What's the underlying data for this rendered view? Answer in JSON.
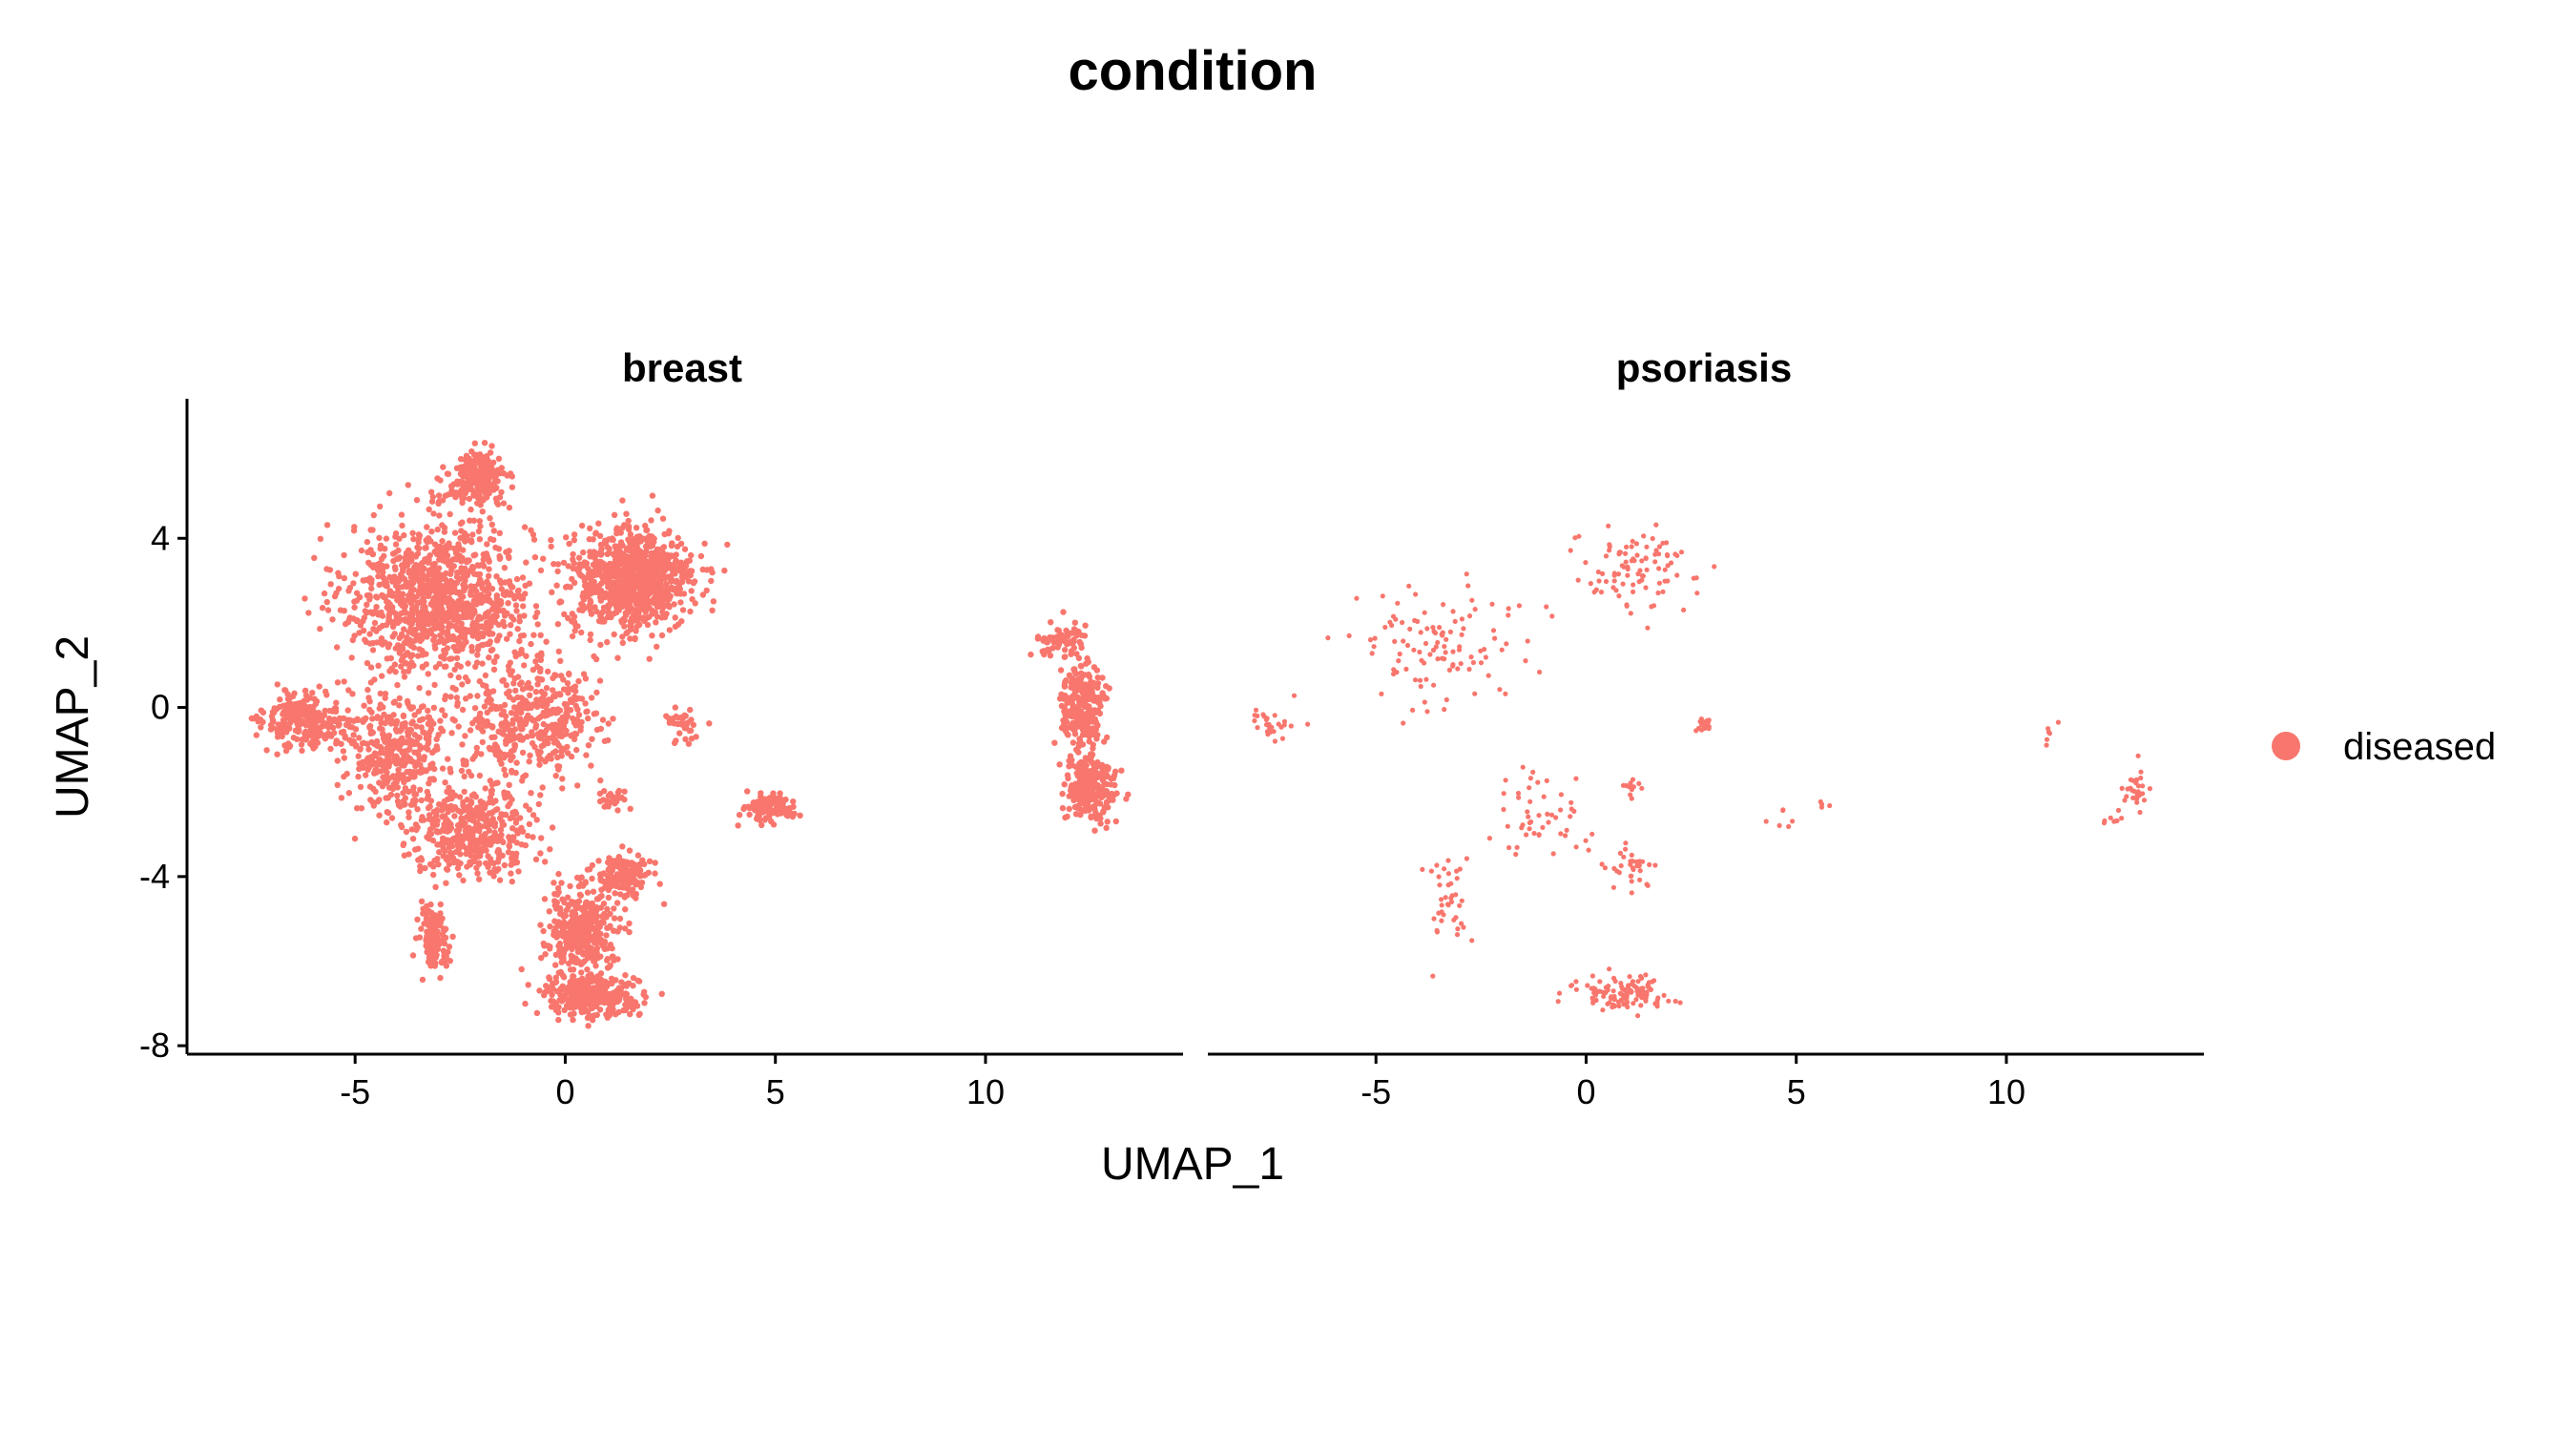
{
  "chart_data": {
    "type": "scatter",
    "title": "condition",
    "xlabel": "UMAP_1",
    "ylabel": "UMAP_2",
    "xlim": [
      -9,
      14.7
    ],
    "ylim": [
      -8.2,
      7.3
    ],
    "xticks": [
      -5,
      0,
      5,
      10
    ],
    "xtick_labels": [
      "-5",
      "0",
      "5",
      "10"
    ],
    "yticks": [
      4,
      0,
      -4,
      -8
    ],
    "ytick_labels": [
      "4",
      "0",
      "-4",
      "-8"
    ],
    "grid": false,
    "legend_position": "right",
    "legend": [
      {
        "label": "diseased",
        "color": "#F8766D"
      }
    ],
    "point_color": "#F8766D",
    "facets": [
      {
        "name": "breast",
        "density": "dense",
        "clusters": [
          {
            "center": [
              -3.0,
              2.6
            ],
            "spread": [
              2.0,
              1.6
            ],
            "n": 1100
          },
          {
            "center": [
              1.6,
              3.0
            ],
            "spread": [
              1.3,
              1.1
            ],
            "n": 900
          },
          {
            "center": [
              -2.1,
              5.4
            ],
            "spread": [
              0.65,
              0.55
            ],
            "n": 220
          },
          {
            "center": [
              -6.2,
              -0.3
            ],
            "spread": [
              0.9,
              0.6
            ],
            "n": 260
          },
          {
            "center": [
              -4.0,
              -1.0
            ],
            "spread": [
              1.1,
              1.3
            ],
            "n": 400
          },
          {
            "center": [
              -0.8,
              -0.3
            ],
            "spread": [
              1.4,
              1.2
            ],
            "n": 420
          },
          {
            "center": [
              -2.2,
              -2.9
            ],
            "spread": [
              1.3,
              0.9
            ],
            "n": 460
          },
          {
            "center": [
              -3.1,
              -5.4
            ],
            "spread": [
              0.35,
              0.7
            ],
            "n": 120
          },
          {
            "center": [
              0.4,
              -5.3
            ],
            "spread": [
              0.8,
              0.9
            ],
            "n": 380
          },
          {
            "center": [
              0.6,
              -6.8
            ],
            "spread": [
              1.0,
              0.45
            ],
            "n": 320
          },
          {
            "center": [
              1.4,
              -4.0
            ],
            "spread": [
              0.55,
              0.45
            ],
            "n": 150
          },
          {
            "center": [
              2.8,
              -0.4
            ],
            "spread": [
              0.4,
              0.35
            ],
            "n": 35
          },
          {
            "center": [
              1.2,
              -2.2
            ],
            "spread": [
              0.4,
              0.3
            ],
            "n": 25
          },
          {
            "center": [
              4.9,
              -2.4
            ],
            "spread": [
              0.55,
              0.3
            ],
            "n": 110
          },
          {
            "center": [
              11.8,
              1.6
            ],
            "spread": [
              0.55,
              0.4
            ],
            "n": 70
          },
          {
            "center": [
              12.3,
              0.0
            ],
            "spread": [
              0.45,
              0.9
            ],
            "n": 240
          },
          {
            "center": [
              12.5,
              -1.9
            ],
            "spread": [
              0.55,
              0.7
            ],
            "n": 240
          }
        ]
      },
      {
        "name": "psoriasis",
        "density": "sparse",
        "clusters": [
          {
            "center": [
              -3.5,
              1.5
            ],
            "spread": [
              1.9,
              1.3
            ],
            "n": 110
          },
          {
            "center": [
              1.0,
              3.2
            ],
            "spread": [
              1.3,
              0.9
            ],
            "n": 95
          },
          {
            "center": [
              -7.4,
              -0.4
            ],
            "spread": [
              0.55,
              0.35
            ],
            "n": 28
          },
          {
            "center": [
              -1.0,
              -2.6
            ],
            "spread": [
              1.2,
              1.0
            ],
            "n": 50
          },
          {
            "center": [
              -3.3,
              -4.6
            ],
            "spread": [
              0.5,
              1.0
            ],
            "n": 40
          },
          {
            "center": [
              0.8,
              -6.8
            ],
            "spread": [
              1.0,
              0.35
            ],
            "n": 120
          },
          {
            "center": [
              1.1,
              -3.8
            ],
            "spread": [
              0.45,
              0.55
            ],
            "n": 35
          },
          {
            "center": [
              1.0,
              -1.9
            ],
            "spread": [
              0.25,
              0.25
            ],
            "n": 12
          },
          {
            "center": [
              2.8,
              -0.4
            ],
            "spread": [
              0.15,
              0.2
            ],
            "n": 18
          },
          {
            "center": [
              4.6,
              -2.6
            ],
            "spread": [
              0.45,
              0.3
            ],
            "n": 6
          },
          {
            "center": [
              5.6,
              -2.3
            ],
            "spread": [
              0.12,
              0.12
            ],
            "n": 4
          },
          {
            "center": [
              11.1,
              -0.8
            ],
            "spread": [
              0.25,
              0.5
            ],
            "n": 6
          },
          {
            "center": [
              13.1,
              -1.8
            ],
            "spread": [
              0.25,
              0.5
            ],
            "n": 28
          },
          {
            "center": [
              12.6,
              -2.6
            ],
            "spread": [
              0.45,
              0.2
            ],
            "n": 8
          }
        ]
      }
    ]
  }
}
